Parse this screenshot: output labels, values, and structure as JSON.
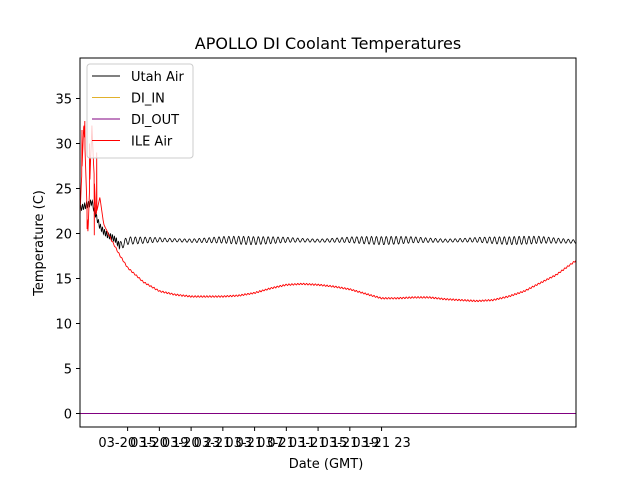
{
  "chart_data": {
    "type": "line",
    "title": "APOLLO DI Coolant Temperatures",
    "xlabel": "Date (GMT)",
    "ylabel": "Temperature (C)",
    "x_unit": "hours since 03-20 09:00",
    "xlim": [
      0,
      62.5
    ],
    "ylim": [
      -1.5,
      39.5
    ],
    "yticks": [
      0,
      5,
      10,
      15,
      20,
      25,
      30,
      35
    ],
    "xticks": [
      {
        "x": 6,
        "label": "03-20 15"
      },
      {
        "x": 10,
        "label": "03-20 19"
      },
      {
        "x": 14,
        "label": "03-20 23"
      },
      {
        "x": 18,
        "label": "03-21 03"
      },
      {
        "x": 22,
        "label": "03-21 07"
      },
      {
        "x": 26,
        "label": "03-21 11"
      },
      {
        "x": 30,
        "label": "03-21 15"
      },
      {
        "x": 34,
        "label": "03-21 19"
      },
      {
        "x": 38,
        "label": "03-21 23"
      }
    ],
    "legend_position": "top-left",
    "series": [
      {
        "name": "Utah Air",
        "color": "#000000",
        "x": [
          0,
          0.5,
          1.0,
          1.5,
          2.0,
          2.5,
          3.0,
          3.5,
          4.0,
          4.5,
          5.0,
          6.0,
          10,
          14,
          18,
          22,
          26,
          30,
          34,
          38,
          42,
          46,
          50,
          54,
          58,
          62.5
        ],
        "y": [
          22.8,
          23.0,
          23.2,
          23.5,
          22.0,
          20.8,
          20.2,
          19.8,
          19.6,
          19.3,
          18.6,
          19.2,
          19.3,
          19.2,
          19.3,
          19.2,
          19.3,
          19.2,
          19.3,
          19.2,
          19.3,
          19.2,
          19.3,
          19.2,
          19.3,
          19.1
        ],
        "oscillation_amplitude": 0.45
      },
      {
        "name": "DI_IN",
        "color": "#e1b12c",
        "x": [
          0,
          62.5
        ],
        "y": [
          0,
          0
        ]
      },
      {
        "name": "DI_OUT",
        "color": "#800080",
        "x": [
          0,
          62.5
        ],
        "y": [
          0,
          0
        ]
      },
      {
        "name": "ILE Air",
        "color": "#ff0000",
        "x": [
          0,
          0.5,
          1.0,
          1.5,
          2.0,
          2.5,
          3.0,
          4.0,
          5.0,
          6.0,
          8.0,
          10.0,
          12.0,
          14.0,
          16.0,
          18.0,
          20.0,
          22.0,
          24.0,
          26.0,
          28.0,
          30.0,
          32.0,
          34.0,
          36.0,
          38.0,
          40.0,
          42.0,
          44.0,
          46.0,
          48.0,
          50.0,
          52.0,
          54.0,
          56.0,
          58.0,
          60.0,
          62.5
        ],
        "y": [
          22.0,
          32.5,
          20.0,
          32.0,
          22.0,
          24.0,
          21.0,
          19.2,
          17.6,
          16.2,
          14.6,
          13.6,
          13.2,
          13.0,
          13.0,
          13.0,
          13.1,
          13.4,
          13.9,
          14.3,
          14.4,
          14.3,
          14.1,
          13.8,
          13.3,
          12.8,
          12.8,
          12.9,
          12.9,
          12.7,
          12.6,
          12.5,
          12.6,
          13.0,
          13.6,
          14.5,
          15.4,
          17.0
        ],
        "spikes": [
          [
            0.25,
            31.5
          ],
          [
            0.6,
            32.5
          ],
          [
            0.9,
            20.5
          ],
          [
            1.2,
            30.0
          ],
          [
            1.5,
            32.0
          ],
          [
            1.8,
            19.8
          ],
          [
            2.1,
            29.0
          ]
        ]
      }
    ]
  }
}
